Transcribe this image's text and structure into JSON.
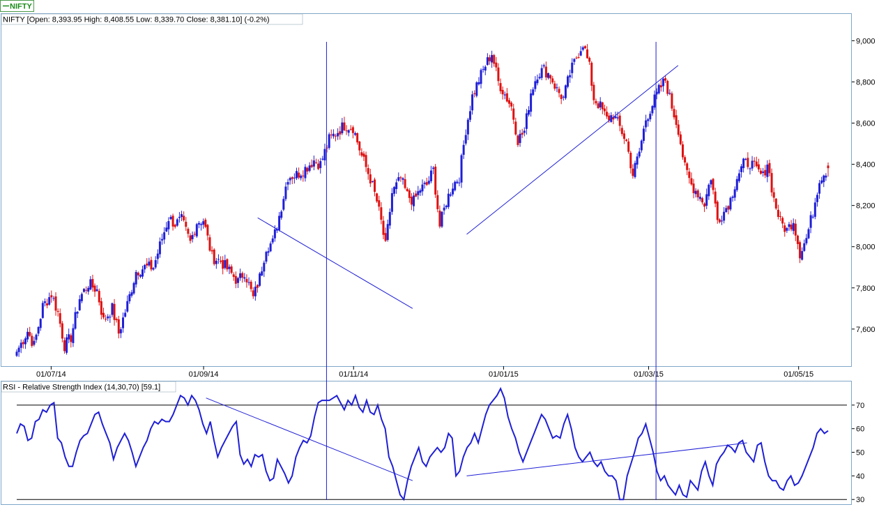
{
  "symbol_tab": {
    "label": "NIFTY",
    "color": "#1a8c1a"
  },
  "price_header": "NIFTY [Open: 8,393.95  High: 8,408.55  Low: 8,339.70  Close: 8,381.10] (-0.2%)",
  "rsi_header": "RSI - Relative Strength Index (14,30,70) [59.1]",
  "colors": {
    "up": "#1f1fd6",
    "down": "#dd1111",
    "line": "#1f1fd6",
    "frame": "#7ea7c9",
    "ref": "#000000"
  },
  "chart_data": [
    {
      "type": "candlestick",
      "title": "NIFTY [Open: 8,393.95  High: 8,408.55  Low: 8,339.70  Close: 8,381.10] (-0.2%)",
      "x_ticks": [
        "01/07/14",
        "01/09/14",
        "01/11/14",
        "01/01/15",
        "01/03/15",
        "01/05/15"
      ],
      "y_ticks": [
        "7,600",
        "7,800",
        "8,000",
        "8,200",
        "8,400",
        "8,600",
        "8,800",
        "9,000"
      ],
      "ylim": [
        7420,
        9130
      ],
      "y_axis_side": "right",
      "last": {
        "open": 8393.95,
        "high": 8408.55,
        "low": 8339.7,
        "close": 8381.1,
        "change_pct": -0.2
      },
      "anchors": [
        [
          0,
          7490
        ],
        [
          5,
          7590
        ],
        [
          8,
          7520
        ],
        [
          12,
          7710
        ],
        [
          16,
          7770
        ],
        [
          19,
          7680
        ],
        [
          22,
          7520
        ],
        [
          25,
          7560
        ],
        [
          29,
          7750
        ],
        [
          33,
          7820
        ],
        [
          37,
          7790
        ],
        [
          40,
          7640
        ],
        [
          44,
          7700
        ],
        [
          47,
          7580
        ],
        [
          51,
          7720
        ],
        [
          55,
          7880
        ],
        [
          59,
          7900
        ],
        [
          63,
          7900
        ],
        [
          67,
          8040
        ],
        [
          70,
          8140
        ],
        [
          73,
          8110
        ],
        [
          76,
          8130
        ],
        [
          80,
          8020
        ],
        [
          83,
          8120
        ],
        [
          86,
          8130
        ],
        [
          90,
          7950
        ],
        [
          94,
          7930
        ],
        [
          98,
          7880
        ],
        [
          102,
          7830
        ],
        [
          105,
          7880
        ],
        [
          109,
          7750
        ],
        [
          112,
          7850
        ],
        [
          115,
          8000
        ],
        [
          118,
          8020
        ],
        [
          121,
          8150
        ],
        [
          125,
          8340
        ],
        [
          129,
          8350
        ],
        [
          133,
          8380
        ],
        [
          137,
          8420
        ],
        [
          140,
          8400
        ],
        [
          144,
          8520
        ],
        [
          148,
          8560
        ],
        [
          151,
          8590
        ],
        [
          155,
          8580
        ],
        [
          159,
          8440
        ],
        [
          163,
          8330
        ],
        [
          166,
          8220
        ],
        [
          168,
          8120
        ],
        [
          170,
          8000
        ],
        [
          173,
          8260
        ],
        [
          177,
          8330
        ],
        [
          180,
          8250
        ],
        [
          183,
          8220
        ],
        [
          186,
          8280
        ],
        [
          189,
          8300
        ],
        [
          192,
          8370
        ],
        [
          195,
          8100
        ],
        [
          198,
          8220
        ],
        [
          201,
          8300
        ],
        [
          204,
          8340
        ],
        [
          207,
          8570
        ],
        [
          210,
          8730
        ],
        [
          213,
          8810
        ],
        [
          216,
          8880
        ],
        [
          219,
          8940
        ],
        [
          222,
          8800
        ],
        [
          225,
          8740
        ],
        [
          228,
          8680
        ],
        [
          231,
          8520
        ],
        [
          234,
          8560
        ],
        [
          237,
          8750
        ],
        [
          240,
          8840
        ],
        [
          243,
          8860
        ],
        [
          246,
          8830
        ],
        [
          249,
          8760
        ],
        [
          252,
          8720
        ],
        [
          255,
          8840
        ],
        [
          258,
          8920
        ],
        [
          261,
          8990
        ],
        [
          264,
          8870
        ],
        [
          266,
          8720
        ],
        [
          269,
          8680
        ],
        [
          272,
          8620
        ],
        [
          275,
          8640
        ],
        [
          278,
          8580
        ],
        [
          281,
          8510
        ],
        [
          284,
          8350
        ],
        [
          287,
          8460
        ],
        [
          290,
          8620
        ],
        [
          293,
          8690
        ],
        [
          296,
          8760
        ],
        [
          299,
          8810
        ],
        [
          302,
          8680
        ],
        [
          305,
          8570
        ],
        [
          308,
          8380
        ],
        [
          311,
          8300
        ],
        [
          314,
          8260
        ],
        [
          317,
          8210
        ],
        [
          320,
          8340
        ],
        [
          323,
          8130
        ],
        [
          326,
          8170
        ],
        [
          329,
          8230
        ],
        [
          332,
          8340
        ],
        [
          335,
          8400
        ],
        [
          338,
          8410
        ],
        [
          341,
          8370
        ],
        [
          344,
          8340
        ],
        [
          346,
          8410
        ],
        [
          349,
          8230
        ],
        [
          352,
          8120
        ],
        [
          355,
          8080
        ],
        [
          358,
          8130
        ],
        [
          361,
          7970
        ],
        [
          364,
          8040
        ],
        [
          367,
          8170
        ],
        [
          370,
          8330
        ],
        [
          374,
          8381
        ]
      ],
      "trendlines": [
        {
          "from": [
            "2014-09-23",
            8140
          ],
          "to": [
            "2014-11-25",
            7700
          ]
        },
        {
          "from": [
            "2014-12-17",
            8060
          ],
          "to": [
            "2015-03-13",
            8880
          ]
        }
      ],
      "vertical_markers": [
        "2014-10-21",
        "2015-03-04"
      ]
    },
    {
      "type": "line",
      "title": "RSI - Relative Strength Index (14,30,70) [59.1]",
      "name": "RSI (14,30,70)",
      "y_ticks": [
        "30",
        "40",
        "50",
        "60",
        "70"
      ],
      "ylim": [
        28,
        80
      ],
      "reference_lines": [
        30,
        70
      ],
      "last_value": 59.1,
      "values": [
        58,
        62,
        61,
        55,
        56,
        63,
        64,
        68,
        67,
        70,
        71,
        56,
        54,
        48,
        44,
        44,
        50,
        55,
        57,
        58,
        62,
        66,
        67,
        62,
        58,
        54,
        47,
        52,
        55,
        58,
        55,
        50,
        44,
        48,
        52,
        55,
        60,
        63,
        62,
        64,
        63,
        63,
        66,
        70,
        74,
        73,
        70,
        74,
        72,
        68,
        62,
        58,
        63,
        55,
        48,
        52,
        55,
        58,
        61,
        63,
        49,
        45,
        47,
        44,
        49,
        48,
        49,
        42,
        38,
        39,
        47,
        44,
        41,
        37,
        40,
        48,
        52,
        55,
        54,
        57,
        65,
        71,
        72,
        72,
        72,
        73,
        74,
        71,
        68,
        72,
        70,
        74,
        69,
        67,
        72,
        67,
        66,
        70,
        64,
        60,
        48,
        44,
        38,
        32,
        30,
        38,
        44,
        48,
        52,
        46,
        44,
        48,
        50,
        52,
        50,
        52,
        58,
        56,
        40,
        42,
        48,
        52,
        54,
        58,
        54,
        60,
        66,
        70,
        72,
        74,
        77,
        73,
        65,
        60,
        56,
        50,
        46,
        50,
        54,
        58,
        62,
        66,
        64,
        60,
        56,
        57,
        56,
        62,
        66,
        60,
        52,
        48,
        46,
        48,
        50,
        46,
        44,
        46,
        42,
        40,
        40,
        38,
        30,
        30,
        40,
        45,
        50,
        56,
        58,
        62,
        56,
        50,
        42,
        38,
        40,
        36,
        34,
        32,
        36,
        32,
        31,
        38,
        36,
        34,
        42,
        46,
        40,
        36,
        45,
        48,
        50,
        53,
        52,
        50,
        54,
        55,
        50,
        48,
        46,
        53,
        54,
        46,
        40,
        38,
        38,
        35,
        34,
        38,
        40,
        36,
        37,
        40,
        44,
        48,
        52,
        58,
        60,
        58,
        59.1
      ],
      "trendlines": [
        {
          "from": [
            "2014-09-02",
            73
          ],
          "to": [
            "2014-11-25",
            38
          ]
        },
        {
          "from": [
            "2014-12-17",
            40
          ],
          "to": [
            "2015-04-10",
            54
          ]
        }
      ]
    }
  ]
}
